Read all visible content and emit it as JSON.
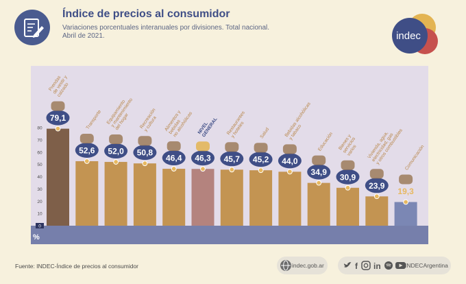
{
  "header": {
    "title": "Índice de precios al consumidor",
    "subtitle_line1": "Variaciones porcentuales interanuales por divisiones. Total nacional.",
    "subtitle_line2": "Abril de 2021.",
    "logo_text": "indec"
  },
  "footer": {
    "source": "Fuente: INDEC-Índice de precios al consumidor",
    "website": "indec.gob.ar",
    "social_handle": "INDECArgentina"
  },
  "colors": {
    "bar": "#c39452",
    "bar_first": "#7e5f49",
    "bar_general": "#b4837e",
    "bar_last": "#7b87b4",
    "plot_bg": "#e3dce9",
    "axis_band": "#767fab",
    "label": "#b8874a",
    "bubble": "#3f4e86",
    "value_last": "#e7b861"
  },
  "chart_data": {
    "type": "bar",
    "unit_label": "%",
    "ylim": [
      0,
      80
    ],
    "yticks": [
      0,
      10,
      20,
      30,
      40,
      50,
      60,
      70,
      80
    ],
    "categories": [
      "Prendas de vestir y calzado",
      "Transporte",
      "Equipamiento y mantenimiento del hogar",
      "Recreación y cultura",
      "Alimentos y bebidas no alcohólicas",
      "NIVEL GENERAL",
      "Restaurantes y hoteles",
      "Salud",
      "Bebidas alcohólicas y tabaco",
      "Educación",
      "Bienes y servicios varios",
      "Vivienda, agua, electricidad, gas y otros combustibles",
      "Comunicación"
    ],
    "values": [
      79.1,
      52.6,
      52.0,
      50.8,
      46.4,
      46.3,
      45.7,
      45.2,
      44.0,
      34.9,
      30.9,
      23.9,
      19.3
    ],
    "value_labels": [
      "79,1",
      "52,6",
      "52,0",
      "50,8",
      "46,4",
      "46,3",
      "45,7",
      "45,2",
      "44,0",
      "34,9",
      "30,9",
      "23,9",
      "19,3"
    ],
    "icons": [
      "clothing-icon",
      "car-icon",
      "appliance-icon",
      "tv-icon",
      "food-basket-icon",
      "coins-icon",
      "restaurant-icon",
      "health-icon",
      "bottle-icon",
      "books-icon",
      "scissors-icon",
      "paint-roller-icon",
      "phone-icon"
    ],
    "grid": false
  }
}
